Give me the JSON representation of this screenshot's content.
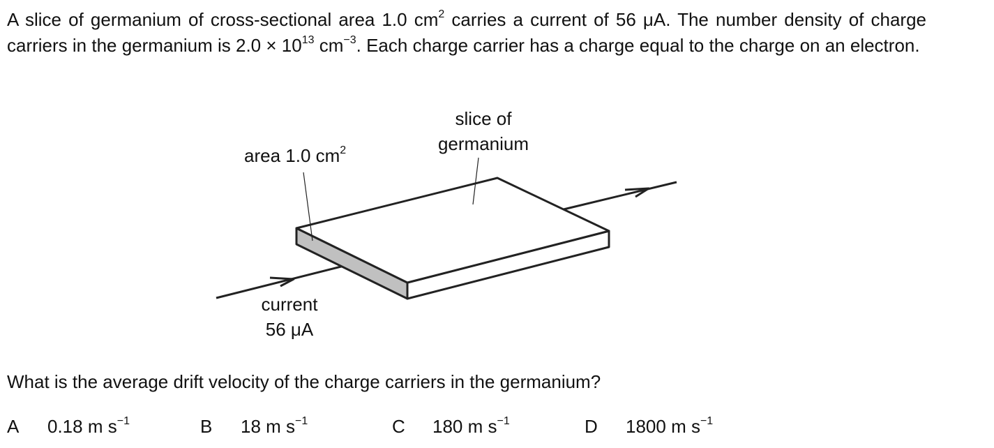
{
  "question": {
    "stem": [
      "A slice of germanium of cross-sectional area 1.0 cm",
      "2",
      " carries a current of 56 μA. The number density of charge carriers in the germanium is 2.0 × 10",
      "13",
      " cm",
      "−3",
      ". Each charge carrier has a charge equal to the charge on an electron."
    ],
    "diagram": {
      "area_label": [
        "area 1.0 cm",
        "2"
      ],
      "slice_label": [
        "slice of",
        "germanium"
      ],
      "current_label": [
        "current",
        "56 μA"
      ]
    },
    "prompt": "What is the average drift velocity of the charge carriers in the germanium?",
    "options": [
      {
        "letter": "A",
        "value": [
          "0.18 m s",
          "−1"
        ]
      },
      {
        "letter": "B",
        "value": [
          "18 m s",
          "−1"
        ]
      },
      {
        "letter": "C",
        "value": [
          "180 m s",
          "−1"
        ]
      },
      {
        "letter": "D",
        "value": [
          "1800 m s",
          "−1"
        ]
      }
    ]
  }
}
